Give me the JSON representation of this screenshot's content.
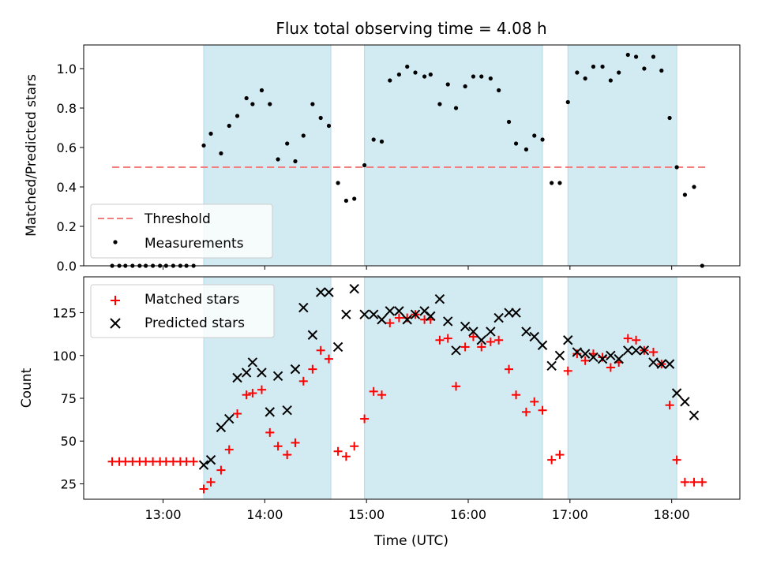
{
  "chart_data": {
    "type": "scatter",
    "title": "Flux total observing time = 4.08 h",
    "xlabel": "Time (UTC)",
    "x_ticks": [
      "13:00",
      "14:00",
      "15:00",
      "16:00",
      "17:00",
      "18:00"
    ],
    "xlim_hours": [
      12.22,
      18.67
    ],
    "shaded_intervals_hours": [
      [
        13.4,
        14.65
      ],
      [
        14.98,
        16.73
      ],
      [
        16.98,
        18.05
      ]
    ],
    "shade_color": "#add8e6",
    "top_panel": {
      "ylabel": "Matched/Predicted stars",
      "ylim": [
        0,
        1.12
      ],
      "y_ticks": [
        "0.0",
        "0.2",
        "0.4",
        "0.6",
        "0.8",
        "1.0"
      ],
      "y_tick_values": [
        0,
        0.2,
        0.4,
        0.6,
        0.8,
        1.0
      ],
      "threshold": {
        "name": "Threshold",
        "value": 0.5,
        "x_range_hours": [
          12.5,
          18.33
        ],
        "color": "#f08080"
      },
      "measurements": {
        "name": "Measurements",
        "color": "#000000",
        "points": [
          [
            12.5,
            0
          ],
          [
            12.57,
            0
          ],
          [
            12.63,
            0
          ],
          [
            12.7,
            0
          ],
          [
            12.77,
            0
          ],
          [
            12.83,
            0
          ],
          [
            12.9,
            0
          ],
          [
            12.97,
            0
          ],
          [
            13.03,
            0
          ],
          [
            13.1,
            0
          ],
          [
            13.17,
            0
          ],
          [
            13.23,
            0
          ],
          [
            13.3,
            0
          ],
          [
            13.4,
            0.61
          ],
          [
            13.47,
            0.67
          ],
          [
            13.57,
            0.57
          ],
          [
            13.65,
            0.71
          ],
          [
            13.73,
            0.76
          ],
          [
            13.82,
            0.85
          ],
          [
            13.88,
            0.82
          ],
          [
            13.97,
            0.89
          ],
          [
            14.05,
            0.82
          ],
          [
            14.13,
            0.54
          ],
          [
            14.22,
            0.62
          ],
          [
            14.3,
            0.53
          ],
          [
            14.38,
            0.66
          ],
          [
            14.47,
            0.82
          ],
          [
            14.55,
            0.75
          ],
          [
            14.63,
            0.71
          ],
          [
            14.72,
            0.42
          ],
          [
            14.8,
            0.33
          ],
          [
            14.88,
            0.34
          ],
          [
            14.98,
            0.51
          ],
          [
            15.07,
            0.64
          ],
          [
            15.15,
            0.63
          ],
          [
            15.23,
            0.94
          ],
          [
            15.32,
            0.97
          ],
          [
            15.4,
            1.01
          ],
          [
            15.48,
            0.98
          ],
          [
            15.57,
            0.96
          ],
          [
            15.63,
            0.97
          ],
          [
            15.72,
            0.82
          ],
          [
            15.8,
            0.92
          ],
          [
            15.88,
            0.8
          ],
          [
            15.97,
            0.91
          ],
          [
            16.05,
            0.96
          ],
          [
            16.13,
            0.96
          ],
          [
            16.22,
            0.95
          ],
          [
            16.3,
            0.89
          ],
          [
            16.4,
            0.73
          ],
          [
            16.47,
            0.62
          ],
          [
            16.57,
            0.59
          ],
          [
            16.65,
            0.66
          ],
          [
            16.73,
            0.64
          ],
          [
            16.82,
            0.42
          ],
          [
            16.9,
            0.42
          ],
          [
            16.98,
            0.83
          ],
          [
            17.07,
            0.98
          ],
          [
            17.15,
            0.95
          ],
          [
            17.23,
            1.01
          ],
          [
            17.32,
            1.01
          ],
          [
            17.4,
            0.94
          ],
          [
            17.48,
            0.98
          ],
          [
            17.57,
            1.07
          ],
          [
            17.65,
            1.06
          ],
          [
            17.73,
            1.0
          ],
          [
            17.82,
            1.06
          ],
          [
            17.9,
            0.99
          ],
          [
            17.98,
            0.75
          ],
          [
            18.05,
            0.5
          ],
          [
            18.13,
            0.36
          ],
          [
            18.22,
            0.4
          ],
          [
            18.3,
            0
          ]
        ]
      }
    },
    "bottom_panel": {
      "ylabel": "Count",
      "ylim": [
        16,
        146
      ],
      "y_ticks": [
        "25",
        "50",
        "75",
        "100",
        "125"
      ],
      "y_tick_values": [
        25,
        50,
        75,
        100,
        125
      ],
      "matched": {
        "name": "Matched stars",
        "color": "#ff0000",
        "marker": "+",
        "points": [
          [
            12.5,
            38
          ],
          [
            12.57,
            38
          ],
          [
            12.63,
            38
          ],
          [
            12.7,
            38
          ],
          [
            12.77,
            38
          ],
          [
            12.83,
            38
          ],
          [
            12.9,
            38
          ],
          [
            12.97,
            38
          ],
          [
            13.03,
            38
          ],
          [
            13.1,
            38
          ],
          [
            13.17,
            38
          ],
          [
            13.23,
            38
          ],
          [
            13.3,
            38
          ],
          [
            13.4,
            22
          ],
          [
            13.47,
            26
          ],
          [
            13.57,
            33
          ],
          [
            13.65,
            45
          ],
          [
            13.73,
            66
          ],
          [
            13.82,
            77
          ],
          [
            13.88,
            78
          ],
          [
            13.97,
            80
          ],
          [
            14.05,
            55
          ],
          [
            14.13,
            47
          ],
          [
            14.22,
            42
          ],
          [
            14.3,
            49
          ],
          [
            14.38,
            85
          ],
          [
            14.47,
            92
          ],
          [
            14.55,
            103
          ],
          [
            14.63,
            98
          ],
          [
            14.72,
            44
          ],
          [
            14.8,
            41
          ],
          [
            14.88,
            47
          ],
          [
            14.98,
            63
          ],
          [
            15.07,
            79
          ],
          [
            15.15,
            77
          ],
          [
            15.23,
            119
          ],
          [
            15.32,
            122
          ],
          [
            15.4,
            122
          ],
          [
            15.48,
            124
          ],
          [
            15.57,
            121
          ],
          [
            15.63,
            121
          ],
          [
            15.72,
            109
          ],
          [
            15.8,
            110
          ],
          [
            15.88,
            82
          ],
          [
            15.97,
            105
          ],
          [
            16.05,
            111
          ],
          [
            16.13,
            105
          ],
          [
            16.22,
            108
          ],
          [
            16.3,
            109
          ],
          [
            16.4,
            92
          ],
          [
            16.47,
            77
          ],
          [
            16.57,
            67
          ],
          [
            16.65,
            73
          ],
          [
            16.73,
            68
          ],
          [
            16.82,
            39
          ],
          [
            16.9,
            42
          ],
          [
            16.98,
            91
          ],
          [
            17.07,
            101
          ],
          [
            17.15,
            97
          ],
          [
            17.23,
            101
          ],
          [
            17.32,
            99
          ],
          [
            17.4,
            93
          ],
          [
            17.48,
            96
          ],
          [
            17.57,
            110
          ],
          [
            17.65,
            109
          ],
          [
            17.73,
            103
          ],
          [
            17.82,
            102
          ],
          [
            17.9,
            95
          ],
          [
            17.98,
            71
          ],
          [
            18.05,
            39
          ],
          [
            18.13,
            26
          ],
          [
            18.22,
            26
          ],
          [
            18.3,
            26
          ]
        ]
      },
      "predicted": {
        "name": "Predicted stars",
        "color": "#000000",
        "marker": "x",
        "points": [
          [
            13.4,
            36
          ],
          [
            13.47,
            39
          ],
          [
            13.57,
            58
          ],
          [
            13.65,
            63
          ],
          [
            13.73,
            87
          ],
          [
            13.82,
            90
          ],
          [
            13.88,
            96
          ],
          [
            13.97,
            90
          ],
          [
            14.05,
            67
          ],
          [
            14.13,
            88
          ],
          [
            14.22,
            68
          ],
          [
            14.3,
            92
          ],
          [
            14.38,
            128
          ],
          [
            14.47,
            112
          ],
          [
            14.55,
            137
          ],
          [
            14.63,
            137
          ],
          [
            14.72,
            105
          ],
          [
            14.8,
            124
          ],
          [
            14.88,
            139
          ],
          [
            14.98,
            124
          ],
          [
            15.07,
            124
          ],
          [
            15.15,
            121
          ],
          [
            15.23,
            126
          ],
          [
            15.32,
            126
          ],
          [
            15.4,
            121
          ],
          [
            15.48,
            124
          ],
          [
            15.57,
            126
          ],
          [
            15.63,
            123
          ],
          [
            15.72,
            133
          ],
          [
            15.8,
            120
          ],
          [
            15.88,
            103
          ],
          [
            15.97,
            117
          ],
          [
            16.05,
            114
          ],
          [
            16.13,
            109
          ],
          [
            16.22,
            114
          ],
          [
            16.3,
            122
          ],
          [
            16.4,
            125
          ],
          [
            16.47,
            125
          ],
          [
            16.57,
            114
          ],
          [
            16.65,
            111
          ],
          [
            16.73,
            106
          ],
          [
            16.82,
            94
          ],
          [
            16.9,
            100
          ],
          [
            16.98,
            109
          ],
          [
            17.07,
            102
          ],
          [
            17.15,
            101
          ],
          [
            17.23,
            99
          ],
          [
            17.32,
            98
          ],
          [
            17.4,
            100
          ],
          [
            17.48,
            98
          ],
          [
            17.57,
            103
          ],
          [
            17.65,
            103
          ],
          [
            17.73,
            103
          ],
          [
            17.82,
            96
          ],
          [
            17.9,
            95
          ],
          [
            17.98,
            95
          ],
          [
            18.05,
            78
          ],
          [
            18.13,
            73
          ],
          [
            18.22,
            65
          ]
        ]
      }
    }
  }
}
